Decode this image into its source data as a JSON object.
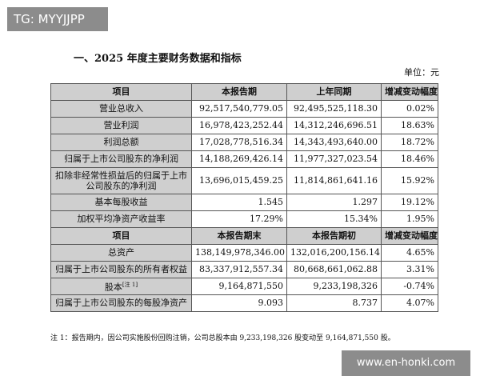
{
  "watermark_tag": "TG: MYYJJPP",
  "title": "一、2025 年度主要财务数据和指标",
  "unit": "单位：元",
  "table": {
    "header1": [
      "项目",
      "本报告期",
      "上年同期",
      "增减变动幅度"
    ],
    "rows1": [
      {
        "label": "营业总收入",
        "current": "92,517,540,779.05",
        "prior": "92,495,525,118.30",
        "change": "0.02%"
      },
      {
        "label": "营业利润",
        "current": "16,978,423,252.44",
        "prior": "14,312,246,696.51",
        "change": "18.63%"
      },
      {
        "label": "利润总额",
        "current": "17,028,778,516.34",
        "prior": "14,343,493,640.00",
        "change": "18.72%"
      },
      {
        "label": "归属于上市公司股东的净利润",
        "current": "14,188,269,426.14",
        "prior": "11,977,327,023.54",
        "change": "18.46%"
      },
      {
        "label": "扣除非经常性损益后的归属于上市公司股东的净利润",
        "current": "13,696,015,459.25",
        "prior": "11,814,861,641.16",
        "change": "15.92%"
      },
      {
        "label": "基本每股收益",
        "current": "1.545",
        "prior": "1.297",
        "change": "19.12%"
      },
      {
        "label": "加权平均净资产收益率",
        "current": "17.29%",
        "prior": "15.34%",
        "change": "1.95%"
      }
    ],
    "header2": [
      "项目",
      "本报告期末",
      "本报告期初",
      "增减变动幅度"
    ],
    "rows2": [
      {
        "label": "总资产",
        "current": "138,149,978,346.00",
        "prior": "132,016,200,156.14",
        "change": "4.65%"
      },
      {
        "label": "归属于上市公司股东的所有者权益",
        "current": "83,337,912,557.34",
        "prior": "80,668,661,062.88",
        "change": "3.31%"
      },
      {
        "label": "股本",
        "label_sup": "[注 1]",
        "current": "9,164,871,550",
        "prior": "9,233,198,326",
        "change": "-0.74%"
      },
      {
        "label": "归属于上市公司股东的每股净资产",
        "current": "9.093",
        "prior": "8.737",
        "change": "4.07%"
      }
    ]
  },
  "note": "注 1：报告期内，因公司实施股份回购注销，公司总股本由 9,233,198,326 股变动至 9,164,871,550 股。",
  "footer_watermark": "www.en-honki.com"
}
